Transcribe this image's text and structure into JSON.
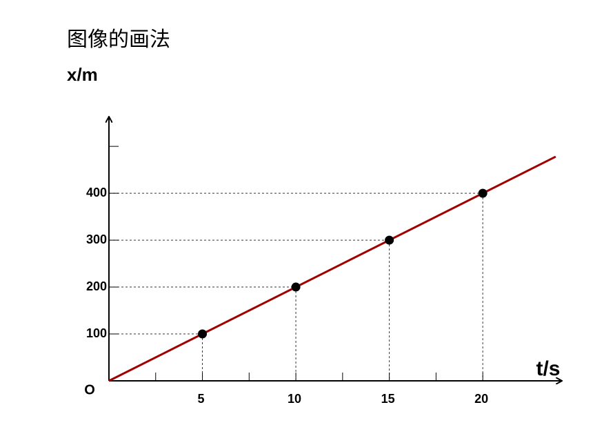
{
  "chart_data": {
    "type": "scatter",
    "title": "图像的画法",
    "y_label": "x/m",
    "x_label": "t/s",
    "origin_label": "O",
    "x": [
      5,
      10,
      15,
      20
    ],
    "y": [
      100,
      200,
      300,
      400
    ],
    "color": "#000000",
    "fit_line": {
      "x": [
        0,
        23.9
      ],
      "y": [
        0,
        478
      ],
      "color": "#a00000"
    },
    "xlim": [
      0,
      24.2
    ],
    "ylim": [
      0,
      562
    ],
    "xticks": [
      5,
      10,
      15,
      20
    ],
    "yticks": [
      100,
      200,
      300,
      400
    ],
    "xminorticks": [
      2.5,
      7.5,
      12.5,
      17.5
    ],
    "yminorticks": [
      500
    ],
    "guides": true
  }
}
